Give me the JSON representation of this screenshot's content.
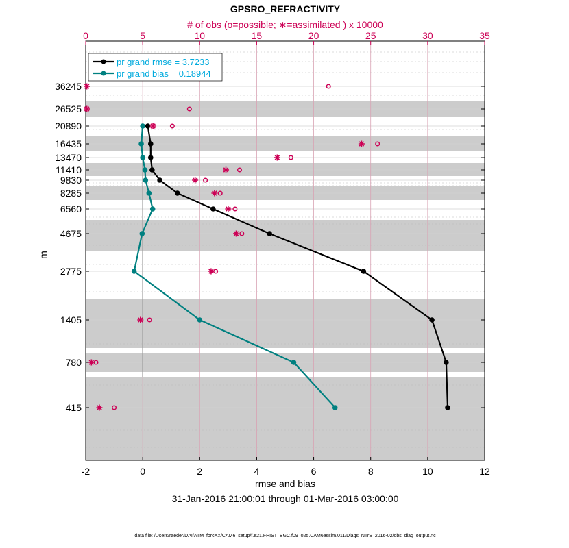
{
  "chart_data": {
    "type": "line",
    "title": "GPSRO_REFRACTIVITY",
    "top_axis_label": "# of obs (o=possible; ∗=assimilated ) x 10000",
    "xlabel": "rmse and bias",
    "ylabel": "m",
    "date_range": "31-Jan-2016 21:00:01 through 01-Mar-2016 03:00:00",
    "footer": "data file: /Users/raeder/DAI/ATM_forcXX/CAM6_setup/f.e21.FHIST_BGC.f09_025.CAM6assim.011/Diags_NTrS_2016-02/obs_diag_output.nc",
    "xlim": [
      -2,
      12
    ],
    "xticks": [
      "-2",
      "0",
      "2",
      "4",
      "6",
      "8",
      "10",
      "12"
    ],
    "top_xlim": [
      0,
      35
    ],
    "top_xticks": [
      "0",
      "5",
      "10",
      "15",
      "20",
      "25",
      "30",
      "35"
    ],
    "levels": [
      "36245",
      "26525",
      "20890",
      "16435",
      "13470",
      "11410",
      "9830",
      "8285",
      "6560",
      "4675",
      "2775",
      "1405",
      "780",
      "415"
    ],
    "series": [
      {
        "name": "rmse",
        "legend": "pr grand rmse = 3.7233",
        "color": "#000000",
        "levels": [
          "20890",
          "16435",
          "13470",
          "11410",
          "9830",
          "8285",
          "6560",
          "4675",
          "2775",
          "1405",
          "780",
          "415"
        ],
        "values": [
          0.18,
          0.28,
          0.28,
          0.33,
          0.6,
          1.22,
          2.47,
          4.45,
          7.75,
          10.15,
          10.65,
          10.7
        ]
      },
      {
        "name": "bias",
        "legend": "pr grand bias = 0.18944",
        "color": "#008080",
        "levels": [
          "20890",
          "16435",
          "13470",
          "11410",
          "9830",
          "8285",
          "6560",
          "4675",
          "2775",
          "1405",
          "780",
          "415"
        ],
        "values": [
          0.0,
          -0.05,
          0.0,
          0.08,
          0.1,
          0.22,
          0.35,
          -0.02,
          -0.3,
          2.0,
          5.3,
          6.75
        ]
      }
    ],
    "obs_possible": {
      "levels": [
        "36245",
        "26525",
        "20890",
        "16435",
        "13470",
        "11410",
        "9830",
        "8285",
        "6560",
        "4675",
        "2775",
        "1405",
        "780",
        "415"
      ],
      "values": [
        21.3,
        9.1,
        7.6,
        25.6,
        18.0,
        13.5,
        10.5,
        11.8,
        13.1,
        13.7,
        11.4,
        5.6,
        0.9,
        2.5
      ]
    },
    "obs_assimilated": {
      "levels": [
        "36245",
        "26525",
        "20890",
        "16435",
        "13470",
        "11410",
        "9830",
        "8285",
        "6560",
        "4675",
        "2775",
        "1405",
        "780",
        "415"
      ],
      "values": [
        0.1,
        0.1,
        5.9,
        24.2,
        16.8,
        12.3,
        9.6,
        11.3,
        12.5,
        13.2,
        11.0,
        4.8,
        0.5,
        1.2
      ]
    },
    "colors": {
      "rmse": "#000000",
      "bias": "#008080",
      "obs": "#cc0055",
      "legend_text": "#00aadd",
      "shade": "#cccccc"
    }
  }
}
